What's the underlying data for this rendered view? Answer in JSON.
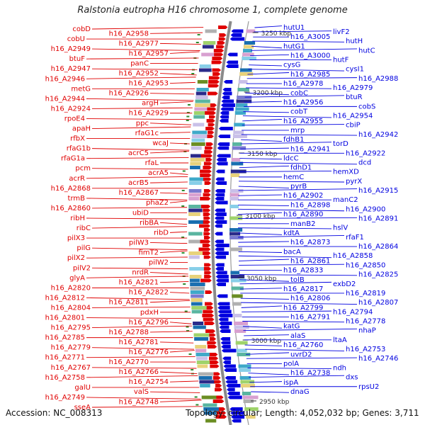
{
  "title": "Ralstonia eutropha H16 chromosome 1, complete genome",
  "footer": {
    "accession": "Accession: NC_008313",
    "summary": "Topology: circular; Length: 4,052,032 bp; Genes: 3,711"
  },
  "colors": {
    "reverse": "#e00000",
    "forward": "#0000e0",
    "backbone": "#8a8a8a"
  },
  "scale_ticks": [
    "3250 kbp",
    "3200 kbp",
    "3150 kbp",
    "3100 kbp",
    "3050 kbp",
    "3000 kbp",
    "2950 kbp"
  ],
  "left_labels": [
    "cobD",
    "h16_A2958",
    "cobU",
    "h16_A2977",
    "h16_A2949",
    "h16_A2957",
    "btuF",
    "panC",
    "h16_A2947",
    "h16_A2952",
    "h16_A2946",
    "h16_A2953",
    "metG",
    "h16_A2926",
    "h16_A2944",
    "argH",
    "h16_A2924",
    "h16_A2929",
    "rpoE4",
    "ppc",
    "apaH",
    "rfaG1c",
    "rfbX",
    "wcaJ",
    "rfaG1b",
    "acrC5",
    "rfaG1a",
    "rfaL",
    "pcm",
    "acrA5",
    "acrR",
    "acrB5",
    "h16_A2868",
    "h16_A2867",
    "trmB",
    "phaZ2",
    "h16_A2860",
    "ubiD",
    "ribH",
    "ribBA",
    "ribC",
    "ribD",
    "pilX3",
    "pilW3",
    "pilG",
    "fimT2",
    "pilX2",
    "pilW2",
    "pilV2",
    "nrdR",
    "glyA",
    "h16_A2821",
    "h16_A2820",
    "h16_A2822",
    "h16_A2812",
    "h16_A2811",
    "h16_A2804",
    "pdxH",
    "h16_A2801",
    "h16_A2796",
    "h16_A2795",
    "h16_A2788",
    "h16_A2785",
    "h16_A2781",
    "h16_A2779",
    "h16_A2776",
    "h16_A2771",
    "h16_A2770",
    "h16_A2767",
    "h16_A2766",
    "h16_A2758",
    "h16_A2754",
    "galU",
    "valS",
    "h16_A2749",
    "h16_A2748",
    "sseA"
  ],
  "right_labels": [
    "hutU1",
    "livF2",
    "h16_A3005",
    "hutH",
    "hutG1",
    "hutC",
    "h16_A3000",
    "hutF",
    "cysG",
    "cysI1",
    "h16_A2985",
    "h16_A2988",
    "h16_A2978",
    "h16_A2979",
    "cobC",
    "btuR",
    "h16_A2956",
    "cobS",
    "cobT",
    "h16_A2954",
    "h16_A2955",
    "cbiP",
    "mrp",
    "h16_A2942",
    "fdhB1",
    "torD",
    "h16_A2941",
    "h16_A2922",
    "ldcC",
    "dcd",
    "fdhD1",
    "hemXD",
    "hemC",
    "pyrX",
    "pyrB",
    "h16_A2915",
    "h16_A2902",
    "manC2",
    "h16_A2898",
    "h16_A2900",
    "h16_A2890",
    "h16_A2891",
    "manB2",
    "hslV",
    "kdtA",
    "rfaF1",
    "h16_A2873",
    "h16_A2864",
    "bacA",
    "h16_A2858",
    "h16_A2861",
    "h16_A2850",
    "h16_A2833",
    "h16_A2825",
    "tolB",
    "exbD2",
    "h16_A2817",
    "h16_A2819",
    "h16_A2806",
    "h16_A2807",
    "h16_A2799",
    "h16_A2794",
    "h16_A2791",
    "h16_A2778",
    "katG",
    "nhaP",
    "alaS",
    "ltaA",
    "h16_A2760",
    "h16_A2753",
    "uvrD2",
    "h16_A2746",
    "polA",
    "ndh",
    "h16_A2738",
    "dxs",
    "ispA",
    "rpsU2",
    "dnaG"
  ]
}
